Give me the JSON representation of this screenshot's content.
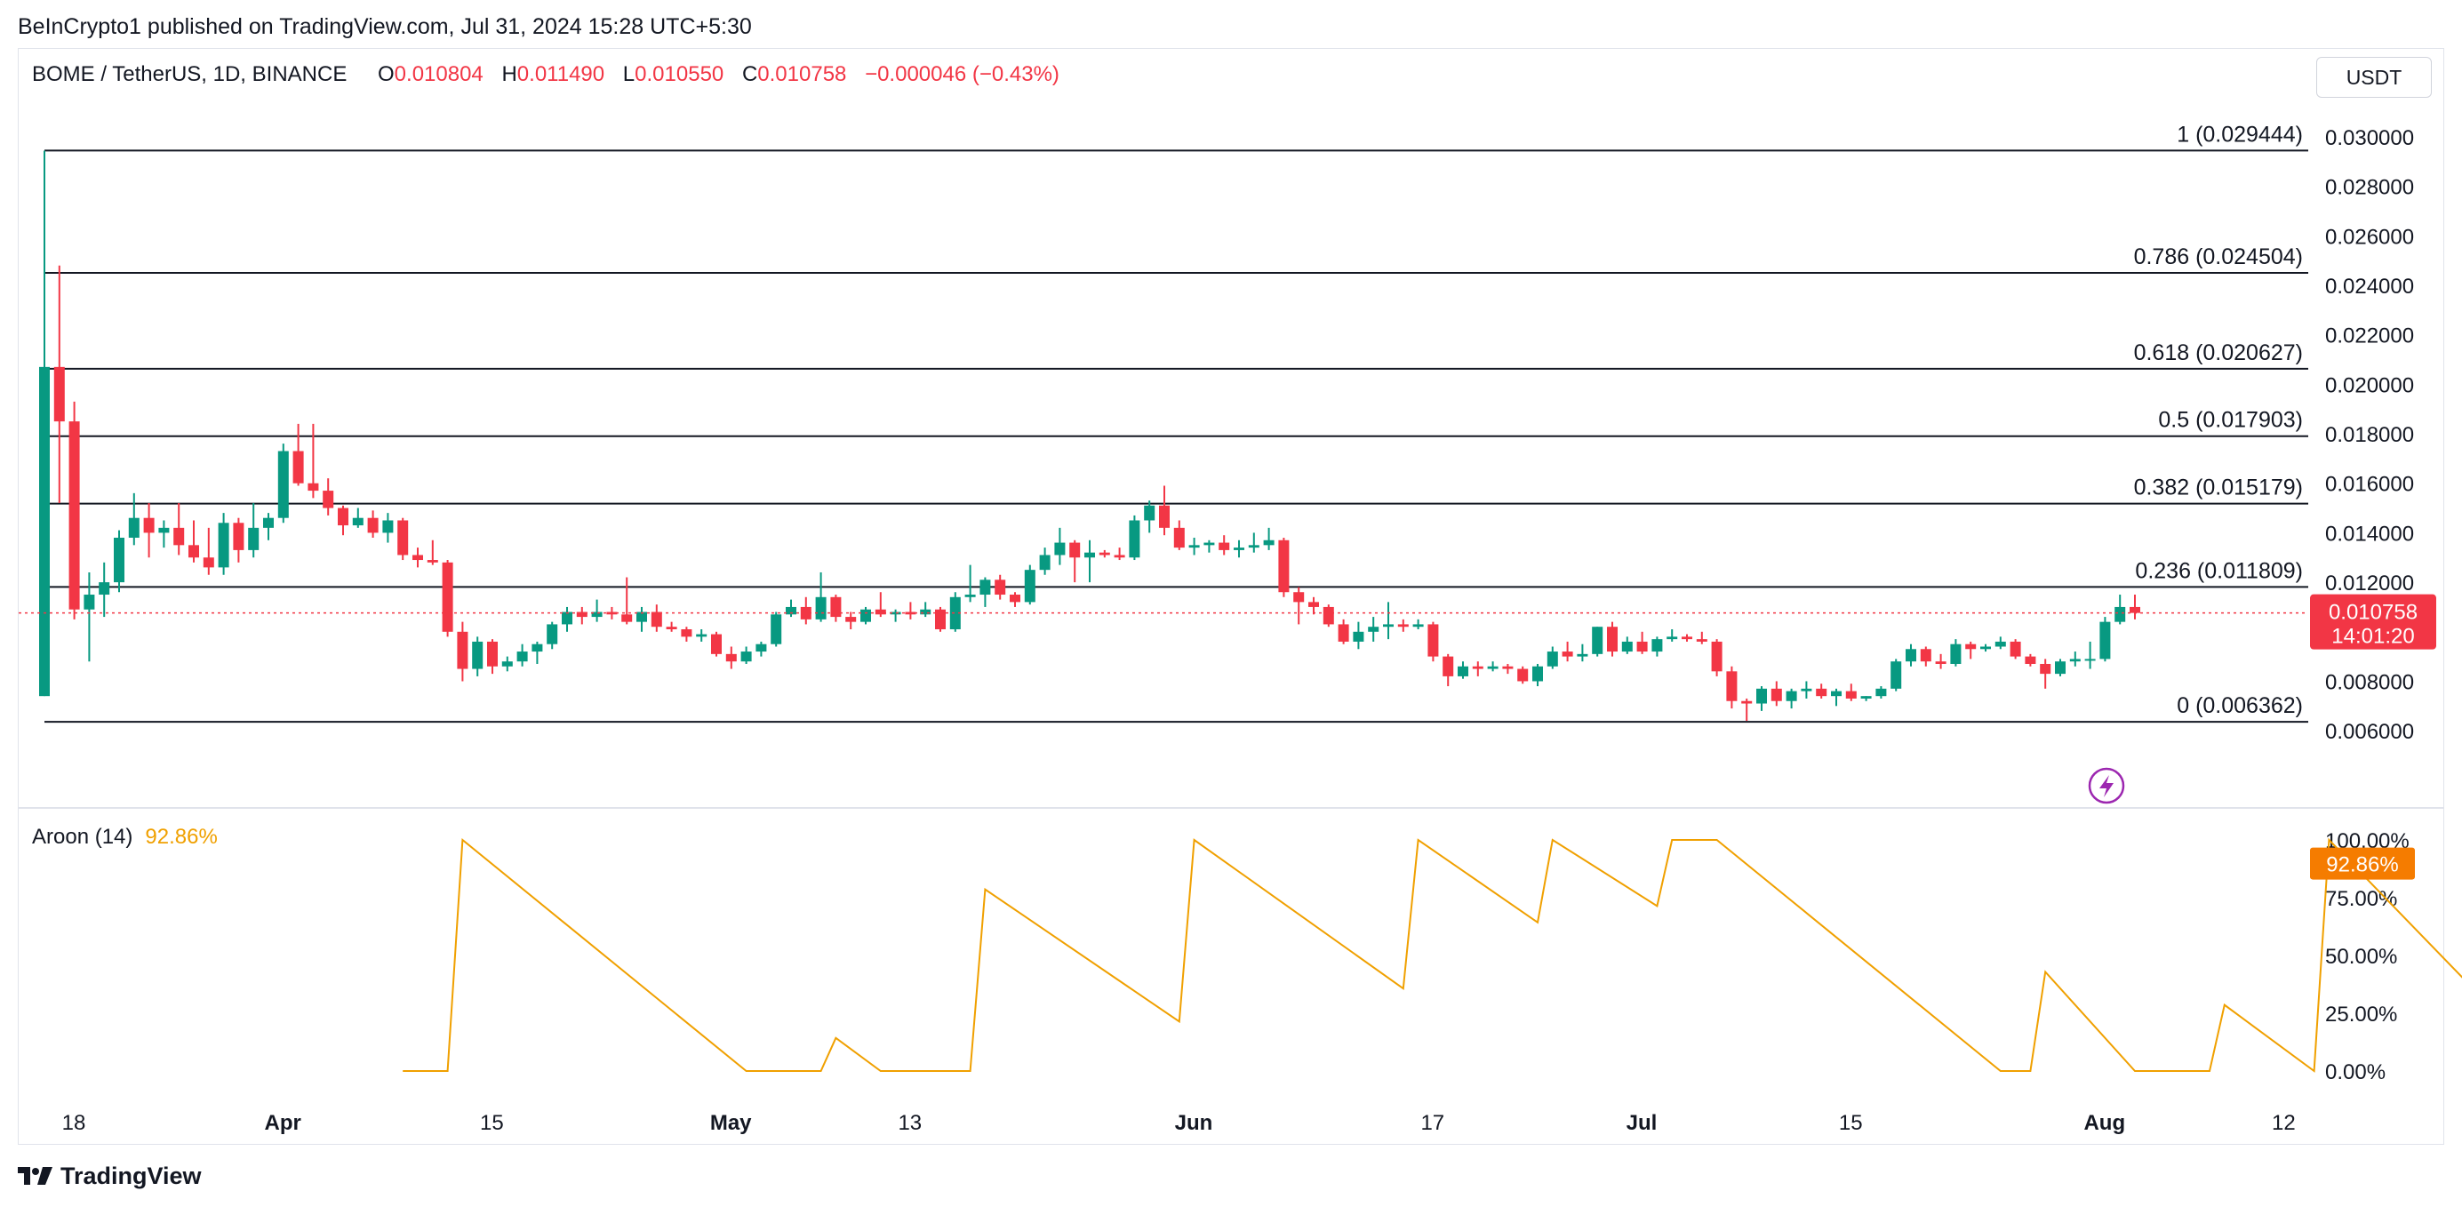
{
  "header": {
    "publisher_line": "BeInCrypto1 published on TradingView.com, Jul 31, 2024 15:28 UTC+5:30"
  },
  "legend": {
    "symbol": "BOME / TetherUS, 1D, BINANCE",
    "open_label": "O",
    "open": "0.010804",
    "high_label": "H",
    "high": "0.011490",
    "low_label": "L",
    "low": "0.010550",
    "close_label": "C",
    "close": "0.010758",
    "change": "−0.000046 (−0.43%)"
  },
  "currency": "USDT",
  "price_badge": {
    "price": "0.010758",
    "countdown": "14:01:20"
  },
  "aroon": {
    "label": "Aroon (14)",
    "value": "92.86%"
  },
  "footer": {
    "brand": "TradingView"
  },
  "colors": {
    "up": "#089981",
    "down": "#f23645",
    "aroon": "#f0a000",
    "badge": "#f23645",
    "aroon_badge": "#f57c00",
    "flash": "#9c27b0"
  },
  "chart_data": [
    {
      "type": "candlestick",
      "title": "BOME / TetherUS, 1D, BINANCE",
      "x_labels": [
        "18",
        "Apr",
        "15",
        "May",
        "13",
        "Jun",
        "17",
        "Jul",
        "15",
        "Aug",
        "12"
      ],
      "x_label_days": [
        0,
        14,
        28,
        44,
        56,
        75,
        91,
        105,
        119,
        136,
        148
      ],
      "y_ticks": [
        "0.006000",
        "0.008000",
        "0.010000",
        "0.012000",
        "0.014000",
        "0.016000",
        "0.018000",
        "0.020000",
        "0.022000",
        "0.024000",
        "0.026000",
        "0.028000",
        "0.030000"
      ],
      "ylim": [
        0.005,
        0.0305
      ],
      "fib_levels": [
        {
          "label": "1 (0.029444)",
          "value": 0.029444
        },
        {
          "label": "0.786 (0.024504)",
          "value": 0.024504
        },
        {
          "label": "0.618 (0.020627)",
          "value": 0.020627
        },
        {
          "label": "0.5 (0.017903)",
          "value": 0.017903
        },
        {
          "label": "0.382 (0.015179)",
          "value": 0.015179
        },
        {
          "label": "0.236 (0.011809)",
          "value": 0.011809
        },
        {
          "label": "0 (0.006362)",
          "value": 0.006362
        }
      ],
      "last_price": 0.010758,
      "candles": [
        [
          0.0074,
          0.02944,
          0.0074,
          0.0207
        ],
        [
          0.0207,
          0.0248,
          0.0152,
          0.0185
        ],
        [
          0.0185,
          0.0193,
          0.0105,
          0.0109
        ],
        [
          0.0109,
          0.0124,
          0.0088,
          0.0115
        ],
        [
          0.0115,
          0.0128,
          0.0106,
          0.012
        ],
        [
          0.012,
          0.0141,
          0.0116,
          0.0138
        ],
        [
          0.0138,
          0.0156,
          0.0135,
          0.0146
        ],
        [
          0.0146,
          0.0152,
          0.013,
          0.014
        ],
        [
          0.014,
          0.0145,
          0.0134,
          0.0142
        ],
        [
          0.0142,
          0.0152,
          0.0131,
          0.0135
        ],
        [
          0.0135,
          0.0145,
          0.0128,
          0.013
        ],
        [
          0.013,
          0.0142,
          0.0123,
          0.0126
        ],
        [
          0.0126,
          0.0148,
          0.0123,
          0.0144
        ],
        [
          0.0144,
          0.0146,
          0.0128,
          0.0133
        ],
        [
          0.0133,
          0.0152,
          0.013,
          0.0142
        ],
        [
          0.0142,
          0.0148,
          0.0137,
          0.0146
        ],
        [
          0.0146,
          0.0176,
          0.0144,
          0.0173
        ],
        [
          0.0173,
          0.0184,
          0.0159,
          0.016
        ],
        [
          0.016,
          0.0184,
          0.0154,
          0.0157
        ],
        [
          0.0157,
          0.0162,
          0.0147,
          0.015
        ],
        [
          0.015,
          0.0151,
          0.0139,
          0.0143
        ],
        [
          0.0143,
          0.015,
          0.0142,
          0.0146
        ],
        [
          0.0146,
          0.0149,
          0.0138,
          0.014
        ],
        [
          0.014,
          0.0148,
          0.0136,
          0.0145
        ],
        [
          0.0145,
          0.0146,
          0.0129,
          0.0131
        ],
        [
          0.0131,
          0.0134,
          0.0126,
          0.0129
        ],
        [
          0.0129,
          0.0137,
          0.0127,
          0.0128
        ],
        [
          0.0128,
          0.0129,
          0.0098,
          0.01
        ],
        [
          0.01,
          0.0104,
          0.008,
          0.0085
        ],
        [
          0.0085,
          0.0098,
          0.0082,
          0.0096
        ],
        [
          0.0096,
          0.0097,
          0.0083,
          0.0086
        ],
        [
          0.0086,
          0.009,
          0.0084,
          0.0088
        ],
        [
          0.0088,
          0.0095,
          0.0086,
          0.0092
        ],
        [
          0.0092,
          0.0096,
          0.0087,
          0.0095
        ],
        [
          0.0095,
          0.0104,
          0.0093,
          0.0103
        ],
        [
          0.0103,
          0.011,
          0.01,
          0.0108
        ],
        [
          0.0108,
          0.011,
          0.0103,
          0.0106
        ],
        [
          0.0106,
          0.0113,
          0.0104,
          0.0108
        ],
        [
          0.0108,
          0.011,
          0.0105,
          0.0107
        ],
        [
          0.0107,
          0.0122,
          0.0103,
          0.0104
        ],
        [
          0.0104,
          0.011,
          0.01,
          0.0108
        ],
        [
          0.0108,
          0.0111,
          0.01,
          0.0102
        ],
        [
          0.0102,
          0.0104,
          0.01,
          0.0101
        ],
        [
          0.0101,
          0.0102,
          0.0096,
          0.0098
        ],
        [
          0.0098,
          0.0101,
          0.0096,
          0.0099
        ],
        [
          0.0099,
          0.01,
          0.009,
          0.0091
        ],
        [
          0.0091,
          0.0094,
          0.0085,
          0.0088
        ],
        [
          0.0088,
          0.0094,
          0.0087,
          0.0092
        ],
        [
          0.0092,
          0.0096,
          0.009,
          0.0095
        ],
        [
          0.0095,
          0.0108,
          0.0094,
          0.0107
        ],
        [
          0.0107,
          0.0113,
          0.0106,
          0.011
        ],
        [
          0.011,
          0.0114,
          0.0103,
          0.0105
        ],
        [
          0.0105,
          0.0124,
          0.0104,
          0.0114
        ],
        [
          0.0114,
          0.0115,
          0.0104,
          0.0106
        ],
        [
          0.0106,
          0.0108,
          0.0101,
          0.0104
        ],
        [
          0.0104,
          0.011,
          0.0103,
          0.0109
        ],
        [
          0.0109,
          0.0116,
          0.0106,
          0.0107
        ],
        [
          0.0107,
          0.0109,
          0.0104,
          0.0108
        ],
        [
          0.0108,
          0.0112,
          0.0105,
          0.0107
        ],
        [
          0.0107,
          0.0112,
          0.0106,
          0.0109
        ],
        [
          0.0109,
          0.011,
          0.01,
          0.0101
        ],
        [
          0.0101,
          0.0116,
          0.01,
          0.0114
        ],
        [
          0.0114,
          0.0127,
          0.0112,
          0.0115
        ],
        [
          0.0115,
          0.0122,
          0.011,
          0.0121
        ],
        [
          0.0121,
          0.0123,
          0.0113,
          0.0115
        ],
        [
          0.0115,
          0.0116,
          0.011,
          0.0112
        ],
        [
          0.0112,
          0.0127,
          0.0111,
          0.0125
        ],
        [
          0.0125,
          0.0134,
          0.0123,
          0.0131
        ],
        [
          0.0131,
          0.0142,
          0.0127,
          0.0136
        ],
        [
          0.0136,
          0.0137,
          0.012,
          0.013
        ],
        [
          0.013,
          0.0137,
          0.012,
          0.0132
        ],
        [
          0.0132,
          0.0133,
          0.013,
          0.0131
        ],
        [
          0.0131,
          0.0134,
          0.0129,
          0.013
        ],
        [
          0.013,
          0.0147,
          0.0129,
          0.0145
        ],
        [
          0.0145,
          0.0153,
          0.014,
          0.0151
        ],
        [
          0.0151,
          0.0159,
          0.0139,
          0.0142
        ],
        [
          0.0142,
          0.0145,
          0.0133,
          0.0134
        ],
        [
          0.0134,
          0.0138,
          0.0131,
          0.0135
        ],
        [
          0.0135,
          0.0137,
          0.0132,
          0.0136
        ],
        [
          0.0136,
          0.0139,
          0.0131,
          0.0133
        ],
        [
          0.0133,
          0.0137,
          0.013,
          0.0134
        ],
        [
          0.0134,
          0.014,
          0.0132,
          0.0135
        ],
        [
          0.0135,
          0.0142,
          0.0133,
          0.0137
        ],
        [
          0.0137,
          0.0138,
          0.0114,
          0.0116
        ],
        [
          0.0116,
          0.0118,
          0.0103,
          0.0112
        ],
        [
          0.0112,
          0.0114,
          0.0107,
          0.011
        ],
        [
          0.011,
          0.0111,
          0.0102,
          0.0103
        ],
        [
          0.0103,
          0.0105,
          0.0095,
          0.0096
        ],
        [
          0.0096,
          0.0104,
          0.0093,
          0.01
        ],
        [
          0.01,
          0.0106,
          0.0096,
          0.0102
        ],
        [
          0.0102,
          0.0112,
          0.0097,
          0.0103
        ],
        [
          0.0103,
          0.0105,
          0.01,
          0.0102
        ],
        [
          0.0102,
          0.0105,
          0.0101,
          0.0103
        ],
        [
          0.0103,
          0.0104,
          0.0088,
          0.009
        ],
        [
          0.009,
          0.0091,
          0.0078,
          0.0082
        ],
        [
          0.0082,
          0.0088,
          0.0081,
          0.0086
        ],
        [
          0.0086,
          0.0088,
          0.0082,
          0.0085
        ],
        [
          0.0085,
          0.0088,
          0.0084,
          0.0086
        ],
        [
          0.0086,
          0.0087,
          0.0083,
          0.0085
        ],
        [
          0.0085,
          0.0086,
          0.0079,
          0.008
        ],
        [
          0.008,
          0.0087,
          0.0078,
          0.0086
        ],
        [
          0.0086,
          0.0094,
          0.0085,
          0.0092
        ],
        [
          0.0092,
          0.0096,
          0.0088,
          0.009
        ],
        [
          0.009,
          0.0095,
          0.0088,
          0.0091
        ],
        [
          0.0091,
          0.0102,
          0.009,
          0.0102
        ],
        [
          0.0102,
          0.0104,
          0.009,
          0.0092
        ],
        [
          0.0092,
          0.0098,
          0.0091,
          0.0096
        ],
        [
          0.0096,
          0.01,
          0.0091,
          0.0092
        ],
        [
          0.0092,
          0.0098,
          0.009,
          0.0097
        ],
        [
          0.0097,
          0.0101,
          0.0096,
          0.0098
        ],
        [
          0.0098,
          0.0099,
          0.0096,
          0.0097
        ],
        [
          0.0097,
          0.01,
          0.0095,
          0.0096
        ],
        [
          0.0096,
          0.0097,
          0.0082,
          0.0084
        ],
        [
          0.0084,
          0.0086,
          0.0069,
          0.0072
        ],
        [
          0.0072,
          0.0073,
          0.0064,
          0.0071
        ],
        [
          0.0071,
          0.0078,
          0.0068,
          0.0077
        ],
        [
          0.0077,
          0.008,
          0.007,
          0.0072
        ],
        [
          0.0072,
          0.0077,
          0.0069,
          0.0076
        ],
        [
          0.0076,
          0.008,
          0.0073,
          0.0077
        ],
        [
          0.0077,
          0.0079,
          0.0073,
          0.0074
        ],
        [
          0.0074,
          0.0077,
          0.007,
          0.0076
        ],
        [
          0.0076,
          0.0079,
          0.0072,
          0.0073
        ],
        [
          0.0073,
          0.0074,
          0.0072,
          0.0074
        ],
        [
          0.0074,
          0.0078,
          0.0073,
          0.0077
        ],
        [
          0.0077,
          0.0089,
          0.0076,
          0.0088
        ],
        [
          0.0088,
          0.0095,
          0.0086,
          0.0093
        ],
        [
          0.0093,
          0.0094,
          0.0086,
          0.0088
        ],
        [
          0.0088,
          0.0091,
          0.0085,
          0.0087
        ],
        [
          0.0087,
          0.0097,
          0.0086,
          0.0095
        ],
        [
          0.0095,
          0.0096,
          0.0089,
          0.0093
        ],
        [
          0.0093,
          0.0095,
          0.0092,
          0.0094
        ],
        [
          0.0094,
          0.0098,
          0.0093,
          0.0096
        ],
        [
          0.0096,
          0.0097,
          0.0089,
          0.009
        ],
        [
          0.009,
          0.0091,
          0.0086,
          0.0087
        ],
        [
          0.0087,
          0.0089,
          0.0077,
          0.0083
        ],
        [
          0.0083,
          0.0089,
          0.0082,
          0.0088
        ],
        [
          0.0088,
          0.0092,
          0.0086,
          0.0089
        ],
        [
          0.0089,
          0.0096,
          0.0085,
          0.0089
        ],
        [
          0.0089,
          0.0106,
          0.0088,
          0.0104
        ],
        [
          0.0104,
          0.0115,
          0.0103,
          0.011
        ],
        [
          0.011,
          0.0115,
          0.0105,
          0.01076
        ]
      ]
    },
    {
      "type": "line",
      "title": "Aroon (14)",
      "y_ticks": [
        "0.00%",
        "25.00%",
        "50.00%",
        "75.00%",
        "100.00%"
      ],
      "ylim": [
        0,
        100
      ],
      "series": [
        {
          "name": "Aroon (14)",
          "points": [
            [
              24,
              0
            ],
            [
              27,
              0
            ],
            [
              28,
              100
            ],
            [
              47,
              0
            ],
            [
              52,
              0
            ],
            [
              53,
              14.3
            ],
            [
              56,
              0
            ],
            [
              62,
              0
            ],
            [
              63,
              78.6
            ],
            [
              76,
              21.4
            ],
            [
              77,
              100
            ],
            [
              91,
              35.7
            ],
            [
              92,
              100
            ],
            [
              100,
              64.3
            ],
            [
              101,
              100
            ],
            [
              108,
              71.4
            ],
            [
              109,
              100
            ],
            [
              112,
              100
            ],
            [
              131,
              0
            ],
            [
              133,
              0
            ],
            [
              134,
              42.9
            ],
            [
              140,
              0
            ],
            [
              145,
              0
            ],
            [
              146,
              28.6
            ],
            [
              152,
              0
            ],
            [
              153,
              100
            ],
            [
              168,
              0
            ],
            [
              169,
              14.3
            ],
            [
              172,
              0
            ],
            [
              175,
              0
            ],
            [
              176,
              92.9
            ],
            [
              177,
              100
            ],
            [
              179,
              92.9
            ],
            [
              180,
              100
            ],
            [
              191,
              50
            ],
            [
              192,
              100
            ],
            [
              194,
              100
            ],
            [
              195,
              92.86
            ]
          ]
        }
      ]
    }
  ]
}
